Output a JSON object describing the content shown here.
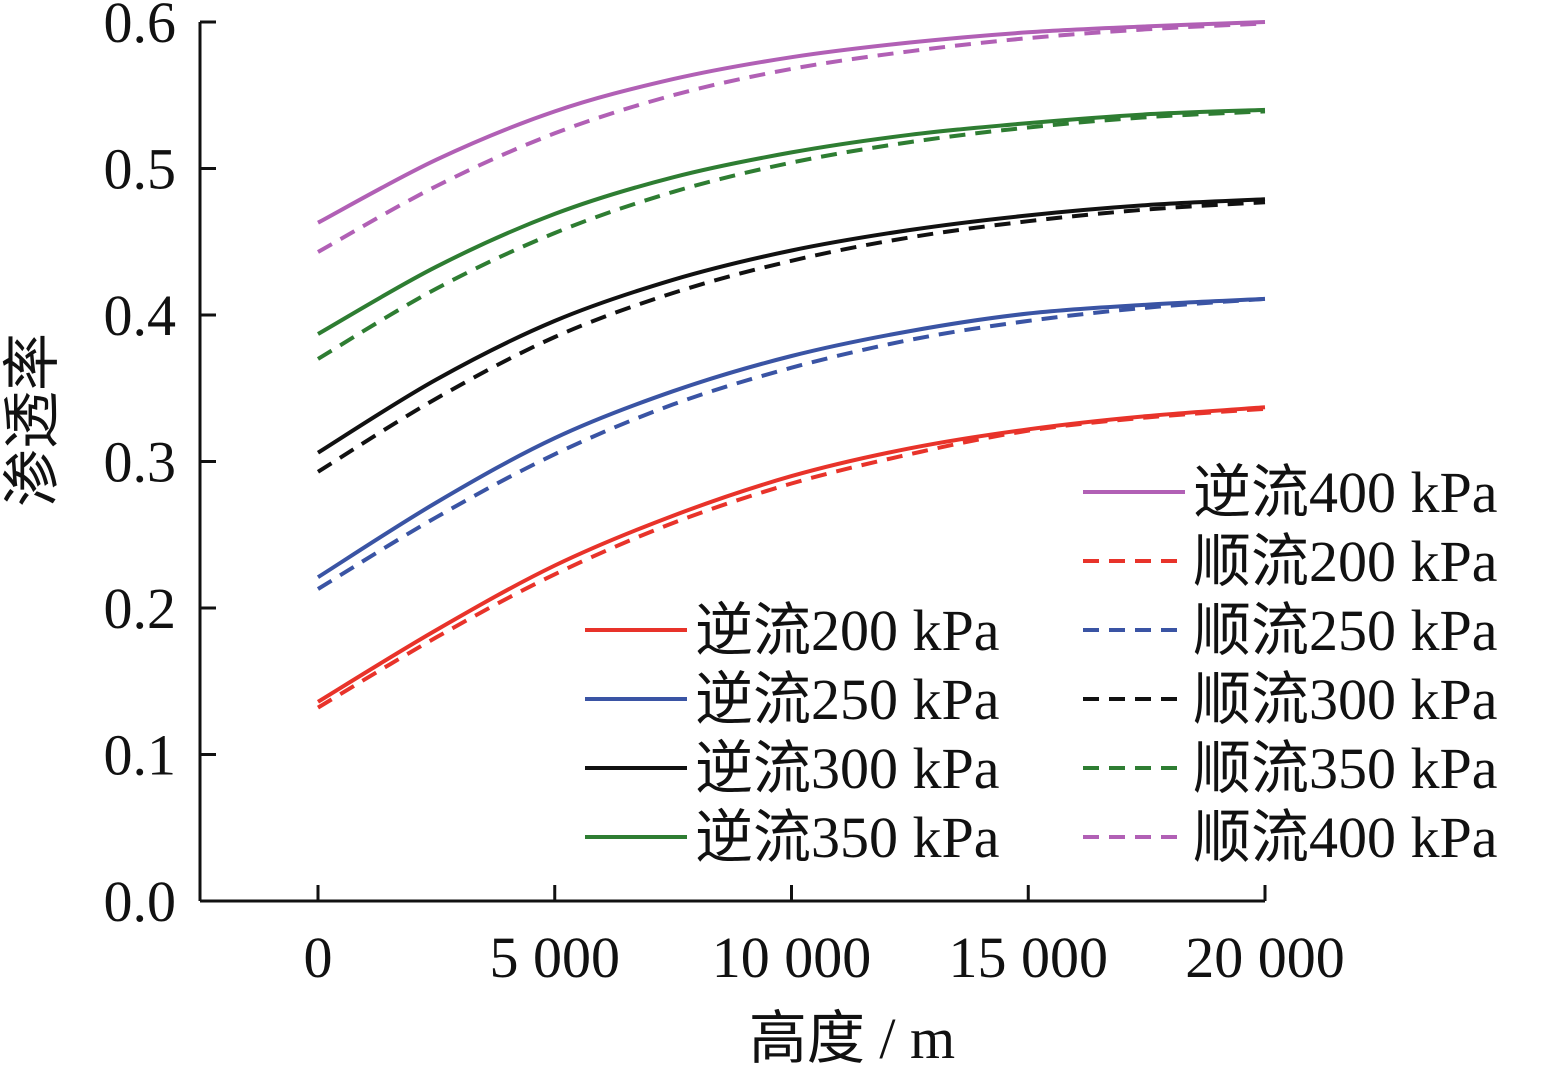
{
  "chart_data": {
    "type": "line",
    "title": "",
    "xlabel": "高度 / m",
    "ylabel": "渗透率",
    "xlim": [
      -2500,
      20000
    ],
    "ylim": [
      0,
      0.6
    ],
    "xticks": [
      0,
      5000,
      10000,
      15000,
      20000
    ],
    "xtick_labels": [
      "0",
      "5 000",
      "10 000",
      "15 000",
      "20 000"
    ],
    "yticks": [
      0,
      0.1,
      0.2,
      0.3,
      0.4,
      0.5,
      0.6
    ],
    "ytick_labels": [
      "0.0",
      "0.1",
      "0.2",
      "0.3",
      "0.4",
      "0.5",
      "0.6"
    ],
    "grid": false,
    "legend_position": "bottom-right",
    "x": [
      0,
      2500,
      5000,
      7500,
      10000,
      12500,
      15000,
      17500,
      20000
    ],
    "series": [
      {
        "name": "逆流200 kPa",
        "color": "#e8332a",
        "dash": "solid",
        "values": [
          0.136,
          0.185,
          0.229,
          0.263,
          0.29,
          0.309,
          0.322,
          0.331,
          0.337
        ]
      },
      {
        "name": "逆流250 kPa",
        "color": "#3a54a4",
        "dash": "solid",
        "values": [
          0.221,
          0.272,
          0.316,
          0.348,
          0.372,
          0.389,
          0.401,
          0.407,
          0.411
        ]
      },
      {
        "name": "逆流300 kPa",
        "color": "#111111",
        "dash": "solid",
        "values": [
          0.306,
          0.356,
          0.396,
          0.424,
          0.444,
          0.458,
          0.468,
          0.475,
          0.479
        ]
      },
      {
        "name": "逆流350 kPa",
        "color": "#2e7d32",
        "dash": "solid",
        "values": [
          0.387,
          0.433,
          0.469,
          0.494,
          0.511,
          0.523,
          0.531,
          0.537,
          0.54
        ]
      },
      {
        "name": "逆流400 kPa",
        "color": "#b160b5",
        "dash": "solid",
        "values": [
          0.463,
          0.506,
          0.539,
          0.561,
          0.576,
          0.586,
          0.593,
          0.597,
          0.6
        ]
      },
      {
        "name": "顺流200 kPa",
        "color": "#e8332a",
        "dash": "dashed",
        "values": [
          0.132,
          0.18,
          0.223,
          0.258,
          0.285,
          0.305,
          0.321,
          0.33,
          0.336
        ]
      },
      {
        "name": "顺流250 kPa",
        "color": "#3a54a4",
        "dash": "dashed",
        "values": [
          0.213,
          0.262,
          0.305,
          0.339,
          0.364,
          0.383,
          0.396,
          0.405,
          0.411
        ]
      },
      {
        "name": "顺流300 kPa",
        "color": "#111111",
        "dash": "dashed",
        "values": [
          0.293,
          0.343,
          0.385,
          0.415,
          0.437,
          0.453,
          0.464,
          0.472,
          0.477
        ]
      },
      {
        "name": "顺流350 kPa",
        "color": "#2e7d32",
        "dash": "dashed",
        "values": [
          0.37,
          0.418,
          0.456,
          0.484,
          0.504,
          0.518,
          0.528,
          0.535,
          0.539
        ]
      },
      {
        "name": "顺流400 kPa",
        "color": "#b160b5",
        "dash": "dashed",
        "values": [
          0.443,
          0.488,
          0.524,
          0.55,
          0.568,
          0.58,
          0.589,
          0.595,
          0.599
        ]
      }
    ]
  }
}
